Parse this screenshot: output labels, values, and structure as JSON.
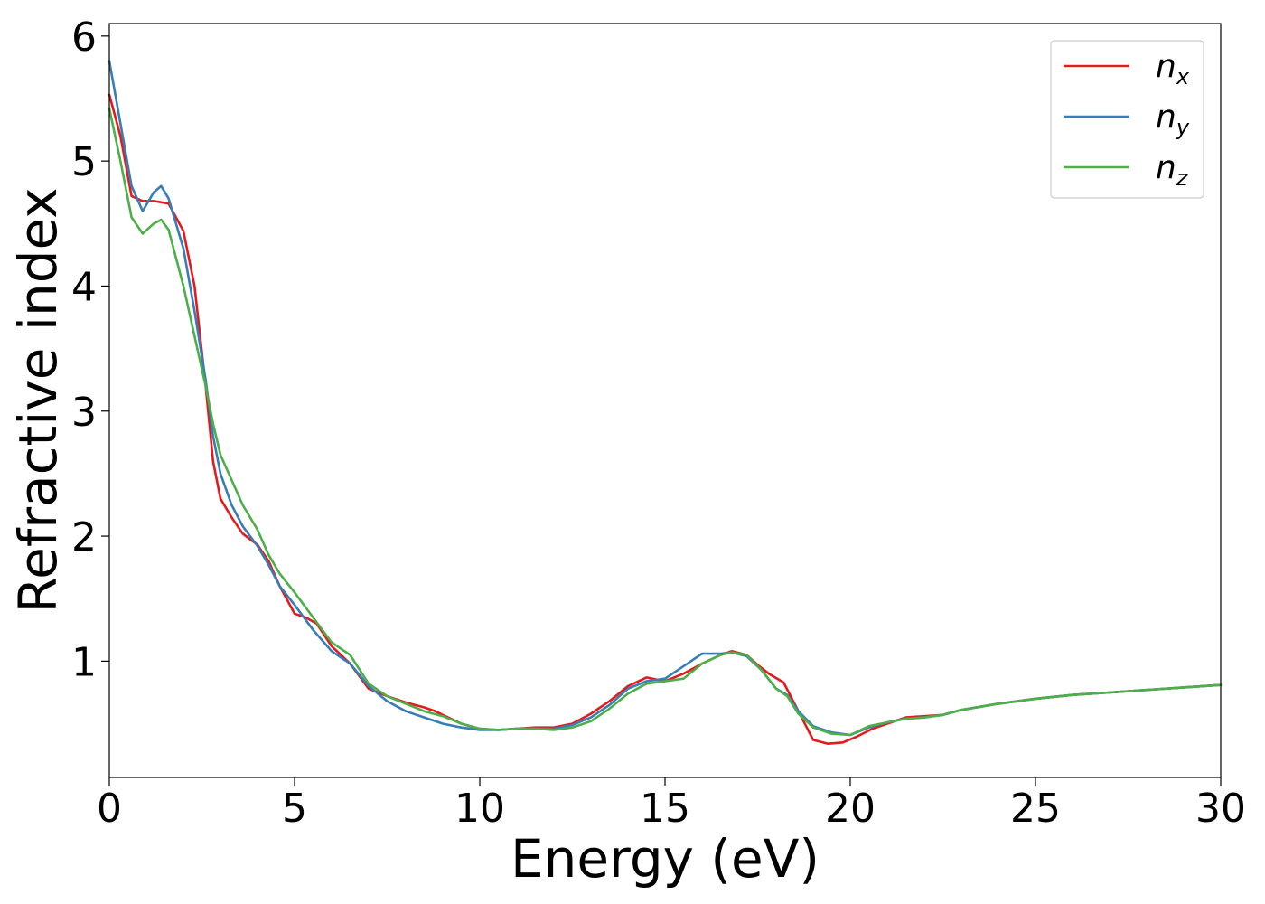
{
  "chart_data": {
    "type": "line",
    "title": "",
    "xlabel": "Energy (eV)",
    "ylabel": "Refractive index",
    "xlim": [
      0,
      30
    ],
    "ylim": [
      0.07,
      6.1
    ],
    "xticks": [
      "0",
      "5",
      "10",
      "15",
      "20",
      "25",
      "30"
    ],
    "yticks": [
      "1",
      "2",
      "3",
      "4",
      "5",
      "6"
    ],
    "grid": false,
    "legend_position": "top-right",
    "series": [
      {
        "name": "n",
        "subscript": "x",
        "color": "#e41a1c",
        "x": [
          0,
          0.3,
          0.6,
          0.9,
          1.2,
          1.6,
          2.0,
          2.3,
          2.6,
          2.8,
          3.0,
          3.3,
          3.6,
          4.0,
          4.3,
          4.6,
          5.0,
          5.3,
          5.6,
          6.0,
          6.5,
          7.0,
          7.5,
          8.0,
          8.5,
          8.8,
          9.0,
          9.5,
          10.0,
          10.5,
          11.0,
          11.5,
          12.0,
          12.5,
          13.0,
          13.5,
          14.0,
          14.5,
          15.0,
          15.5,
          16.0,
          16.5,
          16.8,
          17.2,
          17.5,
          17.8,
          18.2,
          18.6,
          19.0,
          19.4,
          19.8,
          20.2,
          20.6,
          21.0,
          21.5,
          22.0,
          22.5,
          23.0,
          24.0,
          25.0,
          26.0,
          27.0,
          28.0,
          29.0,
          30.0
        ],
        "y": [
          5.53,
          5.2,
          4.72,
          4.68,
          4.68,
          4.66,
          4.44,
          4.0,
          3.2,
          2.6,
          2.3,
          2.15,
          2.02,
          1.93,
          1.8,
          1.6,
          1.38,
          1.35,
          1.3,
          1.12,
          0.98,
          0.78,
          0.72,
          0.67,
          0.63,
          0.6,
          0.57,
          0.5,
          0.46,
          0.45,
          0.46,
          0.47,
          0.47,
          0.5,
          0.58,
          0.68,
          0.8,
          0.87,
          0.84,
          0.9,
          0.98,
          1.05,
          1.08,
          1.05,
          0.97,
          0.9,
          0.83,
          0.6,
          0.37,
          0.34,
          0.35,
          0.4,
          0.46,
          0.5,
          0.55,
          0.56,
          0.57,
          0.61,
          0.66,
          0.7,
          0.73,
          0.75,
          0.77,
          0.79,
          0.81
        ]
      },
      {
        "name": "n",
        "subscript": "y",
        "color": "#377eb8",
        "x": [
          0,
          0.3,
          0.6,
          0.9,
          1.2,
          1.4,
          1.6,
          2.0,
          2.3,
          2.6,
          2.8,
          3.0,
          3.3,
          3.6,
          4.0,
          4.3,
          4.6,
          5.0,
          5.5,
          6.0,
          6.5,
          7.0,
          7.5,
          8.0,
          8.5,
          9.0,
          9.5,
          10.0,
          10.5,
          11.0,
          11.5,
          12.0,
          12.5,
          13.0,
          13.5,
          14.0,
          14.5,
          15.0,
          15.5,
          16.0,
          16.5,
          16.8,
          17.2,
          17.6,
          18.0,
          18.3,
          18.6,
          19.0,
          19.5,
          20.0,
          20.5,
          21.0,
          21.5,
          22.0,
          22.5,
          23.0,
          24.0,
          25.0,
          26.0,
          27.0,
          28.0,
          29.0,
          30.0
        ],
        "y": [
          5.8,
          5.3,
          4.8,
          4.6,
          4.75,
          4.8,
          4.7,
          4.3,
          3.8,
          3.25,
          2.8,
          2.5,
          2.25,
          2.08,
          1.92,
          1.77,
          1.6,
          1.45,
          1.25,
          1.08,
          0.98,
          0.8,
          0.68,
          0.6,
          0.55,
          0.5,
          0.47,
          0.45,
          0.45,
          0.46,
          0.46,
          0.46,
          0.49,
          0.55,
          0.65,
          0.78,
          0.84,
          0.86,
          0.96,
          1.06,
          1.06,
          1.07,
          1.04,
          0.93,
          0.78,
          0.73,
          0.6,
          0.48,
          0.43,
          0.41,
          0.47,
          0.51,
          0.54,
          0.55,
          0.57,
          0.61,
          0.66,
          0.7,
          0.73,
          0.75,
          0.77,
          0.79,
          0.81
        ]
      },
      {
        "name": "n",
        "subscript": "z",
        "color": "#4daf4a",
        "x": [
          0,
          0.3,
          0.6,
          0.9,
          1.2,
          1.4,
          1.6,
          2.0,
          2.3,
          2.6,
          2.8,
          3.0,
          3.3,
          3.6,
          4.0,
          4.3,
          4.6,
          5.0,
          5.5,
          6.0,
          6.5,
          7.0,
          7.5,
          8.0,
          8.5,
          9.0,
          9.5,
          10.0,
          10.5,
          11.0,
          11.5,
          12.0,
          12.5,
          13.0,
          13.5,
          14.0,
          14.5,
          15.0,
          15.5,
          16.0,
          16.5,
          16.8,
          17.2,
          17.6,
          18.0,
          18.3,
          18.6,
          19.0,
          19.5,
          20.0,
          20.5,
          21.0,
          21.5,
          22.0,
          22.5,
          23.0,
          24.0,
          25.0,
          26.0,
          27.0,
          28.0,
          29.0,
          30.0
        ],
        "y": [
          5.42,
          5.0,
          4.55,
          4.42,
          4.5,
          4.53,
          4.45,
          4.0,
          3.6,
          3.2,
          2.9,
          2.65,
          2.45,
          2.25,
          2.05,
          1.85,
          1.7,
          1.55,
          1.35,
          1.15,
          1.05,
          0.82,
          0.72,
          0.66,
          0.6,
          0.56,
          0.5,
          0.46,
          0.45,
          0.46,
          0.46,
          0.45,
          0.47,
          0.52,
          0.62,
          0.74,
          0.82,
          0.84,
          0.86,
          0.98,
          1.05,
          1.07,
          1.05,
          0.93,
          0.78,
          0.72,
          0.58,
          0.47,
          0.42,
          0.41,
          0.48,
          0.51,
          0.54,
          0.55,
          0.57,
          0.61,
          0.66,
          0.7,
          0.73,
          0.75,
          0.77,
          0.79,
          0.81
        ]
      }
    ]
  }
}
